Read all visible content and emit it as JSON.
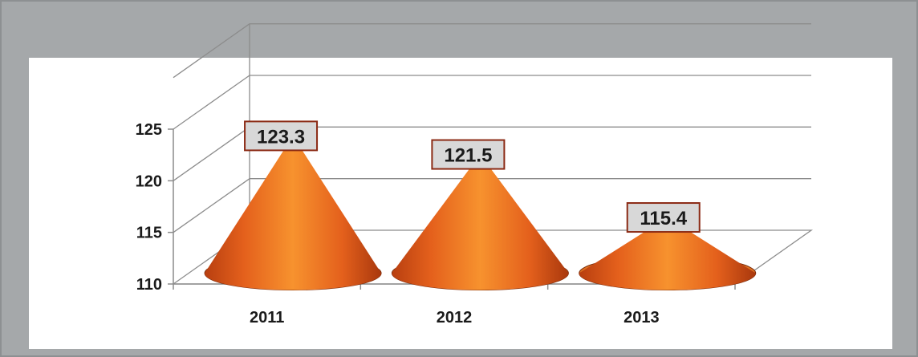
{
  "chart_data": {
    "type": "bar",
    "bar_shape": "cone",
    "categories": [
      "2011",
      "2012",
      "2013"
    ],
    "values": [
      123.3,
      121.5,
      115.4
    ],
    "data_labels": [
      "123.3",
      "121.5",
      "115.4"
    ],
    "ylim": [
      110,
      125
    ],
    "yticks": [
      "110",
      "115",
      "120",
      "125"
    ],
    "title": "",
    "xlabel": "",
    "ylabel": "",
    "grid": true,
    "legend": false,
    "colors": {
      "cone_light": "#f7922e",
      "cone_mid": "#ee6a1f",
      "cone_dark": "#b83f10",
      "label_border": "#8b2a14",
      "label_fill": "#d8d8d8",
      "frame": "#a5a8aa",
      "grid": "#8c8c8c"
    }
  }
}
